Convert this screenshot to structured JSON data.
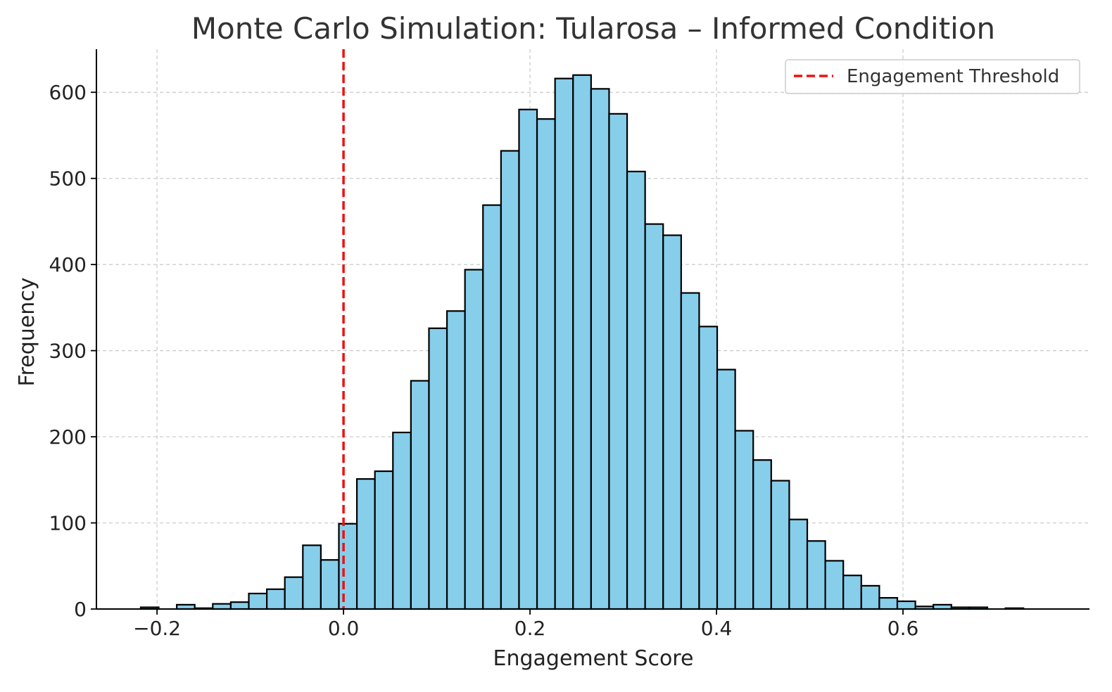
{
  "chart_data": {
    "type": "bar",
    "title": "Monte Carlo Simulation: Tularosa – Informed Condition",
    "xlabel": "Engagement Score",
    "ylabel": "Frequency",
    "xlim": [
      -0.265,
      0.8
    ],
    "ylim": [
      0,
      650
    ],
    "x_ticks": [
      -0.2,
      0.0,
      0.2,
      0.4,
      0.6
    ],
    "x_tick_labels": [
      "−0.2",
      "0.0",
      "0.2",
      "0.4",
      "0.6"
    ],
    "y_ticks": [
      0,
      100,
      200,
      300,
      400,
      500,
      600
    ],
    "y_tick_labels": [
      "0",
      "100",
      "200",
      "300",
      "400",
      "500",
      "600"
    ],
    "grid": true,
    "legend": {
      "placement": "top-right",
      "entries": [
        {
          "label": "Engagement Threshold",
          "style": "dashed-line",
          "color": "#ee1111"
        }
      ]
    },
    "threshold": {
      "x": 0.0
    },
    "bins": {
      "start": -0.2175,
      "width": 0.01932,
      "counts": [
        2,
        0,
        5,
        1,
        6,
        8,
        18,
        23,
        37,
        74,
        57,
        99,
        151,
        160,
        205,
        265,
        326,
        346,
        394,
        469,
        532,
        580,
        569,
        616,
        620,
        604,
        575,
        508,
        447,
        434,
        367,
        328,
        278,
        207,
        173,
        149,
        104,
        79,
        56,
        39,
        27,
        13,
        9,
        3,
        5,
        2,
        2,
        0,
        1,
        0
      ]
    },
    "colors": {
      "bar_fill": "#87ceeb",
      "bar_edge": "#000000",
      "grid": "#c8c8c8",
      "threshold": "#ee1111",
      "title": "#333333"
    }
  }
}
